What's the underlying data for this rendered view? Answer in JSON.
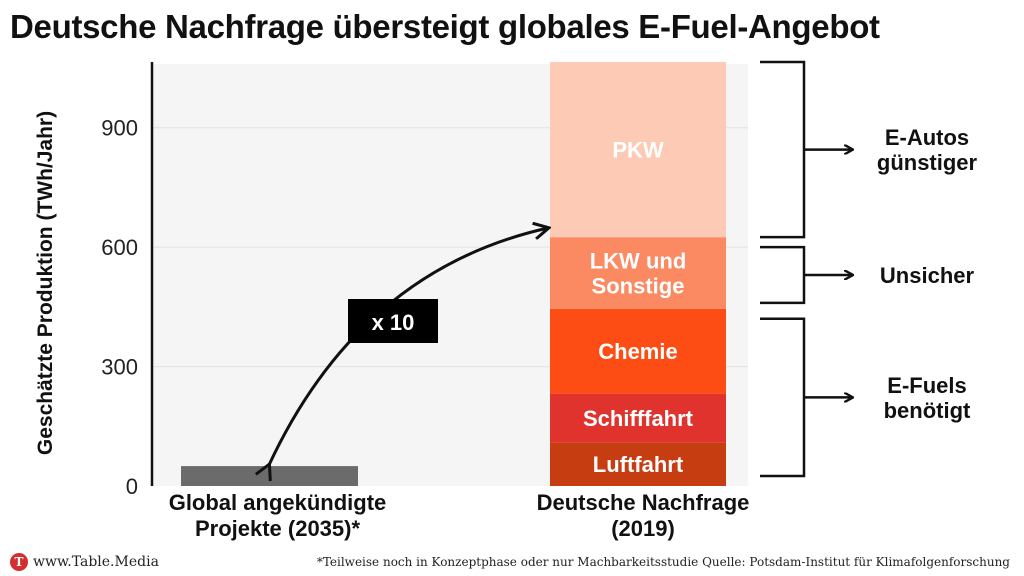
{
  "title": "Deutsche Nachfrage übersteigt globales E-Fuel-Angebot",
  "footer": {
    "logo_letter": "T",
    "site": "www.Table.Media",
    "footnote": "*Teilweise noch in Konzeptphase oder nur Machbarkeitsstudie Quelle: Potsdam-Institut für Klimafolgenforschung"
  },
  "chart_data": {
    "type": "bar",
    "ylabel": "Geschätzte Produktion (TWh/Jahr)",
    "ylim": [
      0,
      1060
    ],
    "yticks": [
      "0",
      "300",
      "600",
      "900"
    ],
    "ytick_values": [
      0,
      300,
      600,
      900
    ],
    "grid": true,
    "categories": [
      {
        "label_lines": [
          "Global angekündigte",
          "Projekte (2035)*"
        ],
        "value": 50,
        "color": "#6b6b6b"
      },
      {
        "label_lines": [
          "Deutsche Nachfrage",
          "(2019)"
        ],
        "stack": [
          {
            "name": "Luftfahrt",
            "value": 110,
            "color": "#c73d12"
          },
          {
            "name": "Schifffahrt",
            "value": 122,
            "color": "#e0332d"
          },
          {
            "name": "Chemie",
            "value": 213,
            "color": "#fd4d14"
          },
          {
            "name": "LKW und Sonstige",
            "value": 180,
            "color": "#fb8a63"
          },
          {
            "name": "PKW",
            "value": 440,
            "color": "#fdcbb5"
          }
        ]
      }
    ],
    "annotation": {
      "text": "x 10"
    },
    "groups": [
      {
        "label_lines": [
          "E-Autos",
          "günstiger"
        ],
        "from": 625,
        "to": 1065
      },
      {
        "label_lines": [
          "Unsicher"
        ],
        "from": 460,
        "to": 600
      },
      {
        "label_lines": [
          "E-Fuels",
          "benötigt"
        ],
        "from": 25,
        "to": 420
      }
    ]
  }
}
